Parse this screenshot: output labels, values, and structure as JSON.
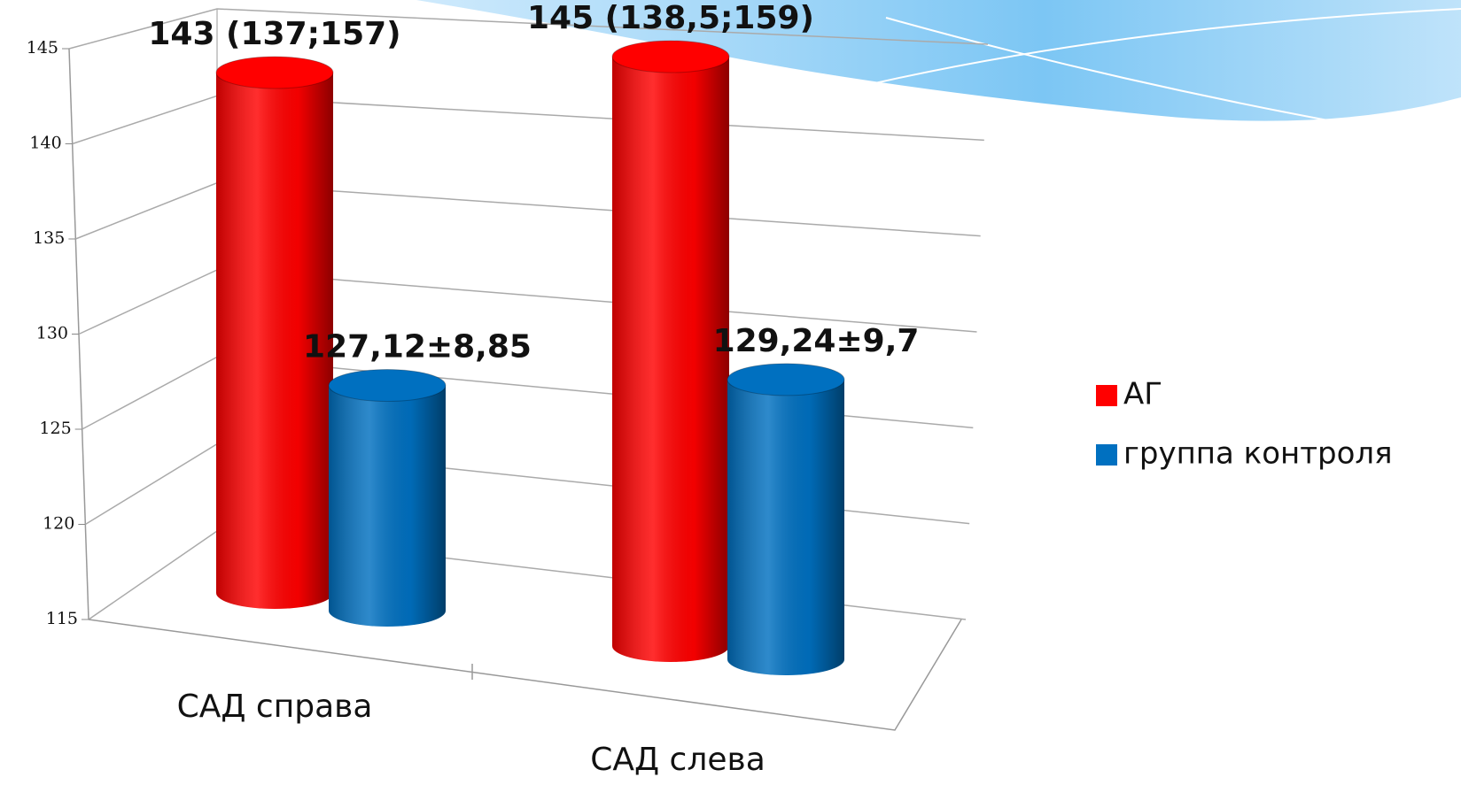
{
  "chart_data": {
    "type": "bar3d",
    "categories": [
      "САД справа",
      "САД слева"
    ],
    "series": [
      {
        "name": "АГ",
        "color": "#ff0000",
        "values": [
          143,
          145
        ],
        "value_labels": [
          "143 (137;157)",
          "145 (138,5;159)"
        ]
      },
      {
        "name": "группа контроля",
        "color": "#0070c0",
        "values": [
          127.12,
          129.24
        ],
        "value_labels": [
          "127,12±8,85",
          "129,24±9,7"
        ]
      }
    ],
    "ylim": [
      115,
      145
    ],
    "yticks": [
      115,
      120,
      125,
      130,
      135,
      140,
      145
    ],
    "grid": true,
    "legend": "right"
  }
}
